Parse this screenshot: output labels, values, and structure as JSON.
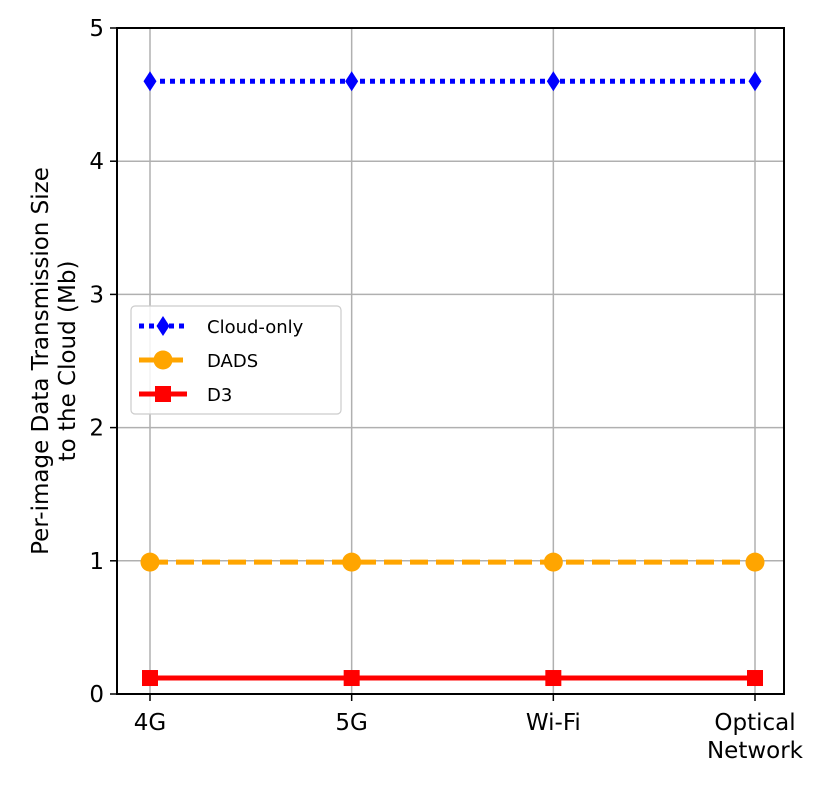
{
  "chart_data": {
    "type": "line",
    "categories": [
      "4G",
      "5G",
      "Wi-Fi",
      "Optical Network"
    ],
    "category_lines": [
      [
        "4G"
      ],
      [
        "5G"
      ],
      [
        "Wi-Fi"
      ],
      [
        "Optical",
        "Network"
      ]
    ],
    "ylabel_lines": [
      "Per-image Data Transmission Size",
      "to the Cloud (Mb)"
    ],
    "xlabel": "",
    "title": "",
    "ylim": [
      0,
      5
    ],
    "yticks": [
      0,
      1,
      2,
      3,
      4,
      5
    ],
    "grid": true,
    "legend_position": "center-left",
    "series": [
      {
        "name": "Cloud-only",
        "values": [
          4.6,
          4.6,
          4.6,
          4.6
        ],
        "color": "#0000ff",
        "marker": "diamond",
        "linestyle": "dotted"
      },
      {
        "name": "DADS",
        "values": [
          0.99,
          0.99,
          0.99,
          0.99
        ],
        "color": "#ffa500",
        "marker": "circle",
        "linestyle": "dashed"
      },
      {
        "name": "D3",
        "values": [
          0.12,
          0.12,
          0.12,
          0.12
        ],
        "color": "#ff0000",
        "marker": "square",
        "linestyle": "solid"
      }
    ]
  }
}
